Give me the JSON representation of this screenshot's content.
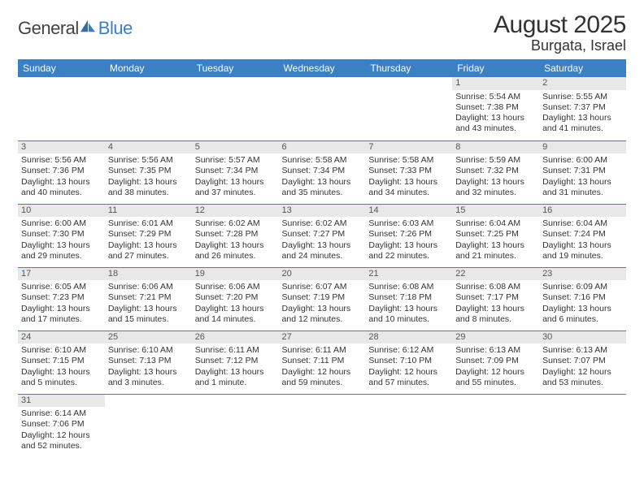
{
  "logo": {
    "general": "General",
    "blue": "Blue"
  },
  "title": "August 2025",
  "location": "Burgata, Israel",
  "colors": {
    "header_bg": "#3b7fc4",
    "header_text": "#ffffff",
    "daynum_bg": "#e8e8e8",
    "text": "#333333",
    "border": "#3b7fc4"
  },
  "day_headers": [
    "Sunday",
    "Monday",
    "Tuesday",
    "Wednesday",
    "Thursday",
    "Friday",
    "Saturday"
  ],
  "weeks": [
    [
      null,
      null,
      null,
      null,
      null,
      {
        "n": "1",
        "sr": "Sunrise: 5:54 AM",
        "ss": "Sunset: 7:38 PM",
        "d1": "Daylight: 13 hours",
        "d2": "and 43 minutes."
      },
      {
        "n": "2",
        "sr": "Sunrise: 5:55 AM",
        "ss": "Sunset: 7:37 PM",
        "d1": "Daylight: 13 hours",
        "d2": "and 41 minutes."
      }
    ],
    [
      {
        "n": "3",
        "sr": "Sunrise: 5:56 AM",
        "ss": "Sunset: 7:36 PM",
        "d1": "Daylight: 13 hours",
        "d2": "and 40 minutes."
      },
      {
        "n": "4",
        "sr": "Sunrise: 5:56 AM",
        "ss": "Sunset: 7:35 PM",
        "d1": "Daylight: 13 hours",
        "d2": "and 38 minutes."
      },
      {
        "n": "5",
        "sr": "Sunrise: 5:57 AM",
        "ss": "Sunset: 7:34 PM",
        "d1": "Daylight: 13 hours",
        "d2": "and 37 minutes."
      },
      {
        "n": "6",
        "sr": "Sunrise: 5:58 AM",
        "ss": "Sunset: 7:34 PM",
        "d1": "Daylight: 13 hours",
        "d2": "and 35 minutes."
      },
      {
        "n": "7",
        "sr": "Sunrise: 5:58 AM",
        "ss": "Sunset: 7:33 PM",
        "d1": "Daylight: 13 hours",
        "d2": "and 34 minutes."
      },
      {
        "n": "8",
        "sr": "Sunrise: 5:59 AM",
        "ss": "Sunset: 7:32 PM",
        "d1": "Daylight: 13 hours",
        "d2": "and 32 minutes."
      },
      {
        "n": "9",
        "sr": "Sunrise: 6:00 AM",
        "ss": "Sunset: 7:31 PM",
        "d1": "Daylight: 13 hours",
        "d2": "and 31 minutes."
      }
    ],
    [
      {
        "n": "10",
        "sr": "Sunrise: 6:00 AM",
        "ss": "Sunset: 7:30 PM",
        "d1": "Daylight: 13 hours",
        "d2": "and 29 minutes."
      },
      {
        "n": "11",
        "sr": "Sunrise: 6:01 AM",
        "ss": "Sunset: 7:29 PM",
        "d1": "Daylight: 13 hours",
        "d2": "and 27 minutes."
      },
      {
        "n": "12",
        "sr": "Sunrise: 6:02 AM",
        "ss": "Sunset: 7:28 PM",
        "d1": "Daylight: 13 hours",
        "d2": "and 26 minutes."
      },
      {
        "n": "13",
        "sr": "Sunrise: 6:02 AM",
        "ss": "Sunset: 7:27 PM",
        "d1": "Daylight: 13 hours",
        "d2": "and 24 minutes."
      },
      {
        "n": "14",
        "sr": "Sunrise: 6:03 AM",
        "ss": "Sunset: 7:26 PM",
        "d1": "Daylight: 13 hours",
        "d2": "and 22 minutes."
      },
      {
        "n": "15",
        "sr": "Sunrise: 6:04 AM",
        "ss": "Sunset: 7:25 PM",
        "d1": "Daylight: 13 hours",
        "d2": "and 21 minutes."
      },
      {
        "n": "16",
        "sr": "Sunrise: 6:04 AM",
        "ss": "Sunset: 7:24 PM",
        "d1": "Daylight: 13 hours",
        "d2": "and 19 minutes."
      }
    ],
    [
      {
        "n": "17",
        "sr": "Sunrise: 6:05 AM",
        "ss": "Sunset: 7:23 PM",
        "d1": "Daylight: 13 hours",
        "d2": "and 17 minutes."
      },
      {
        "n": "18",
        "sr": "Sunrise: 6:06 AM",
        "ss": "Sunset: 7:21 PM",
        "d1": "Daylight: 13 hours",
        "d2": "and 15 minutes."
      },
      {
        "n": "19",
        "sr": "Sunrise: 6:06 AM",
        "ss": "Sunset: 7:20 PM",
        "d1": "Daylight: 13 hours",
        "d2": "and 14 minutes."
      },
      {
        "n": "20",
        "sr": "Sunrise: 6:07 AM",
        "ss": "Sunset: 7:19 PM",
        "d1": "Daylight: 13 hours",
        "d2": "and 12 minutes."
      },
      {
        "n": "21",
        "sr": "Sunrise: 6:08 AM",
        "ss": "Sunset: 7:18 PM",
        "d1": "Daylight: 13 hours",
        "d2": "and 10 minutes."
      },
      {
        "n": "22",
        "sr": "Sunrise: 6:08 AM",
        "ss": "Sunset: 7:17 PM",
        "d1": "Daylight: 13 hours",
        "d2": "and 8 minutes."
      },
      {
        "n": "23",
        "sr": "Sunrise: 6:09 AM",
        "ss": "Sunset: 7:16 PM",
        "d1": "Daylight: 13 hours",
        "d2": "and 6 minutes."
      }
    ],
    [
      {
        "n": "24",
        "sr": "Sunrise: 6:10 AM",
        "ss": "Sunset: 7:15 PM",
        "d1": "Daylight: 13 hours",
        "d2": "and 5 minutes."
      },
      {
        "n": "25",
        "sr": "Sunrise: 6:10 AM",
        "ss": "Sunset: 7:13 PM",
        "d1": "Daylight: 13 hours",
        "d2": "and 3 minutes."
      },
      {
        "n": "26",
        "sr": "Sunrise: 6:11 AM",
        "ss": "Sunset: 7:12 PM",
        "d1": "Daylight: 13 hours",
        "d2": "and 1 minute."
      },
      {
        "n": "27",
        "sr": "Sunrise: 6:11 AM",
        "ss": "Sunset: 7:11 PM",
        "d1": "Daylight: 12 hours",
        "d2": "and 59 minutes."
      },
      {
        "n": "28",
        "sr": "Sunrise: 6:12 AM",
        "ss": "Sunset: 7:10 PM",
        "d1": "Daylight: 12 hours",
        "d2": "and 57 minutes."
      },
      {
        "n": "29",
        "sr": "Sunrise: 6:13 AM",
        "ss": "Sunset: 7:09 PM",
        "d1": "Daylight: 12 hours",
        "d2": "and 55 minutes."
      },
      {
        "n": "30",
        "sr": "Sunrise: 6:13 AM",
        "ss": "Sunset: 7:07 PM",
        "d1": "Daylight: 12 hours",
        "d2": "and 53 minutes."
      }
    ],
    [
      {
        "n": "31",
        "sr": "Sunrise: 6:14 AM",
        "ss": "Sunset: 7:06 PM",
        "d1": "Daylight: 12 hours",
        "d2": "and 52 minutes."
      },
      null,
      null,
      null,
      null,
      null,
      null
    ]
  ]
}
